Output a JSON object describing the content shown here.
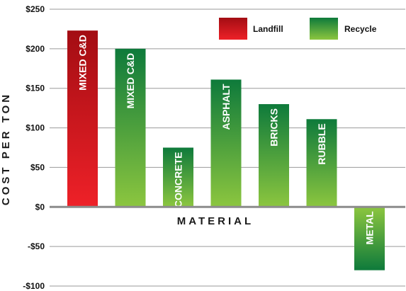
{
  "chart_data": {
    "type": "bar",
    "title": "",
    "xlabel": "MATERIAL",
    "ylabel": "COST PER TON",
    "ylim": [
      -100,
      250
    ],
    "yticks": [
      250,
      200,
      150,
      100,
      50,
      0,
      -50,
      -100
    ],
    "ytick_labels": [
      "$250",
      "$200",
      "$150",
      "$100",
      "$50",
      "$0",
      "-$50",
      "-$100"
    ],
    "grid": true,
    "legend_position": "top-right",
    "series": [
      {
        "name": "Landfill",
        "color_top": "#a30d13",
        "color_bottom": "#ee2128"
      },
      {
        "name": "Recycle",
        "color_top": "#0e7a3b",
        "color_bottom": "#8cc63f"
      }
    ],
    "bars": [
      {
        "category": "MIXED C&D",
        "series": "Landfill",
        "value": 223
      },
      {
        "category": "MIXED C&D",
        "series": "Recycle",
        "value": 200
      },
      {
        "category": "CONCRETE",
        "series": "Recycle",
        "value": 75
      },
      {
        "category": "ASPHALT",
        "series": "Recycle",
        "value": 161
      },
      {
        "category": "BRICKS",
        "series": "Recycle",
        "value": 130
      },
      {
        "category": "RUBBLE",
        "series": "Recycle",
        "value": 111
      },
      {
        "category": "METAL",
        "series": "Recycle",
        "value": -80
      }
    ]
  }
}
